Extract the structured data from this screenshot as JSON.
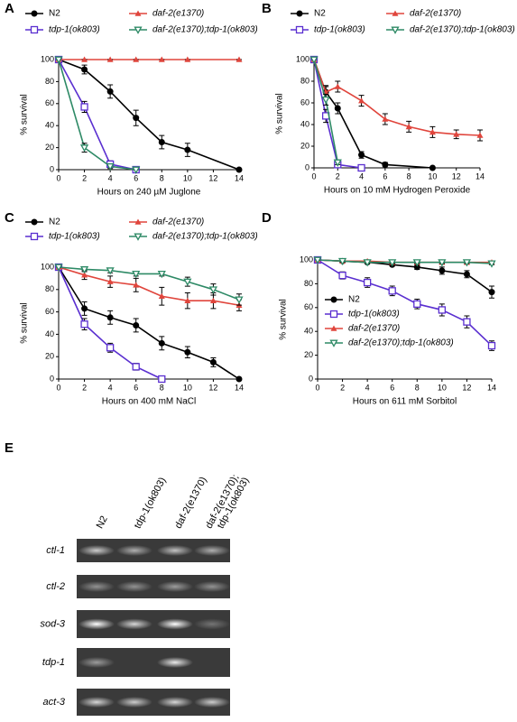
{
  "chart_data": [
    {
      "type": "line",
      "panel": "A",
      "xlabel": "Hours on 240 µM Juglone",
      "ylabel": "% survival",
      "xlim": [
        0,
        14
      ],
      "xticks": [
        0,
        2,
        4,
        6,
        8,
        10,
        12,
        14
      ],
      "ylim": [
        0,
        100
      ],
      "yticks": [
        0,
        20,
        40,
        60,
        80,
        100
      ],
      "series": [
        {
          "name": "N2",
          "color": "#000000",
          "marker": "circle",
          "x": [
            0,
            2,
            4,
            6,
            8,
            10,
            14
          ],
          "values": [
            100,
            91,
            71,
            47,
            25,
            18,
            0
          ],
          "errors": [
            0,
            4,
            6,
            7,
            6,
            6,
            0
          ]
        },
        {
          "name": "tdp-1(ok803)",
          "color": "#5a2fd0",
          "marker": "open-square",
          "x": [
            0,
            2,
            4,
            6
          ],
          "values": [
            100,
            57,
            5,
            0
          ],
          "errors": [
            0,
            5,
            3,
            0
          ]
        },
        {
          "name": "daf-2(e1370)",
          "color": "#e0453c",
          "marker": "triangle-up",
          "x": [
            0,
            2,
            4,
            6,
            8,
            10,
            14
          ],
          "values": [
            100,
            100,
            100,
            100,
            100,
            100,
            100
          ],
          "errors": [
            0,
            0,
            0,
            0,
            0,
            0,
            0
          ]
        },
        {
          "name": "daf-2(e1370);tdp-1(ok803)",
          "color": "#2e8a66",
          "marker": "open-triangle-down",
          "x": [
            0,
            2,
            4,
            6
          ],
          "values": [
            100,
            20,
            3,
            0
          ],
          "errors": [
            0,
            4,
            2,
            0
          ]
        }
      ]
    },
    {
      "type": "line",
      "panel": "B",
      "xlabel": "Hours on 10 mM Hydrogen Peroxide",
      "ylabel": "% survival",
      "xlim": [
        0,
        14
      ],
      "xticks": [
        0,
        2,
        4,
        6,
        8,
        10,
        12,
        14
      ],
      "ylim": [
        0,
        100
      ],
      "yticks": [
        0,
        20,
        40,
        60,
        80,
        100
      ],
      "series": [
        {
          "name": "N2",
          "color": "#000000",
          "marker": "circle",
          "x": [
            0,
            1,
            2,
            4,
            6,
            10
          ],
          "values": [
            100,
            70,
            55,
            12,
            3,
            0
          ],
          "errors": [
            0,
            5,
            5,
            3,
            2,
            0
          ]
        },
        {
          "name": "tdp-1(ok803)",
          "color": "#5a2fd0",
          "marker": "open-square",
          "x": [
            0,
            1,
            2,
            4
          ],
          "values": [
            100,
            48,
            3,
            0
          ],
          "errors": [
            0,
            6,
            2,
            0
          ]
        },
        {
          "name": "daf-2(e1370)",
          "color": "#e0453c",
          "marker": "triangle-up",
          "x": [
            0,
            1,
            2,
            4,
            6,
            8,
            10,
            12,
            14
          ],
          "values": [
            100,
            70,
            75,
            62,
            45,
            38,
            33,
            31,
            30
          ],
          "errors": [
            0,
            6,
            5,
            5,
            5,
            5,
            5,
            4,
            5
          ]
        },
        {
          "name": "daf-2(e1370);tdp-1(ok803)",
          "color": "#2e8a66",
          "marker": "open-triangle-down",
          "x": [
            0,
            1,
            2
          ],
          "values": [
            100,
            63,
            5
          ],
          "errors": [
            0,
            5,
            2
          ]
        }
      ]
    },
    {
      "type": "line",
      "panel": "C",
      "xlabel": "Hours on 400 mM NaCl",
      "ylabel": "% survival",
      "xlim": [
        0,
        14
      ],
      "xticks": [
        0,
        2,
        4,
        6,
        8,
        10,
        12,
        14
      ],
      "ylim": [
        0,
        100
      ],
      "yticks": [
        0,
        20,
        40,
        60,
        80,
        100
      ],
      "series": [
        {
          "name": "N2",
          "color": "#000000",
          "marker": "circle",
          "x": [
            0,
            2,
            4,
            6,
            8,
            10,
            12,
            14
          ],
          "values": [
            100,
            63,
            55,
            48,
            32,
            24,
            15,
            0
          ],
          "errors": [
            0,
            6,
            6,
            6,
            6,
            5,
            4,
            0
          ]
        },
        {
          "name": "tdp-1(ok803)",
          "color": "#5a2fd0",
          "marker": "open-square",
          "x": [
            0,
            2,
            4,
            6,
            8
          ],
          "values": [
            100,
            49,
            28,
            11,
            0
          ],
          "errors": [
            0,
            5,
            4,
            3,
            0
          ]
        },
        {
          "name": "daf-2(e1370)",
          "color": "#e0453c",
          "marker": "triangle-up",
          "x": [
            0,
            2,
            4,
            6,
            8,
            10,
            12,
            14
          ],
          "values": [
            100,
            93,
            87,
            84,
            74,
            70,
            70,
            66
          ],
          "errors": [
            0,
            4,
            5,
            6,
            8,
            7,
            7,
            5
          ]
        },
        {
          "name": "daf-2(e1370);tdp-1(ok803)",
          "color": "#2e8a66",
          "marker": "open-triangle-down",
          "x": [
            0,
            2,
            4,
            6,
            8,
            10,
            12,
            14
          ],
          "values": [
            100,
            98,
            97,
            94,
            94,
            87,
            80,
            71
          ],
          "errors": [
            0,
            2,
            2,
            2,
            2,
            4,
            5,
            5
          ]
        }
      ]
    },
    {
      "type": "line",
      "panel": "D",
      "xlabel": "Hours on 611 mM Sorbitol",
      "ylabel": "% survival",
      "xlim": [
        0,
        14
      ],
      "xticks": [
        0,
        2,
        4,
        6,
        8,
        10,
        12,
        14
      ],
      "ylim": [
        0,
        100
      ],
      "yticks": [
        0,
        20,
        40,
        60,
        80,
        100
      ],
      "series": [
        {
          "name": "N2",
          "color": "#000000",
          "marker": "circle",
          "x": [
            0,
            2,
            4,
            6,
            8,
            10,
            12,
            14
          ],
          "values": [
            100,
            99,
            98,
            96,
            94,
            91,
            88,
            73
          ],
          "errors": [
            0,
            1,
            1,
            1,
            2,
            3,
            3,
            5
          ]
        },
        {
          "name": "tdp-1(ok803)",
          "color": "#5a2fd0",
          "marker": "open-square",
          "x": [
            0,
            2,
            4,
            6,
            8,
            10,
            12,
            14
          ],
          "values": [
            100,
            87,
            81,
            74,
            63,
            58,
            48,
            28
          ],
          "errors": [
            0,
            3,
            4,
            4,
            4,
            5,
            5,
            4
          ]
        },
        {
          "name": "daf-2(e1370)",
          "color": "#e0453c",
          "marker": "triangle-up",
          "x": [
            0,
            2,
            4,
            6,
            8,
            10,
            12,
            14
          ],
          "values": [
            100,
            99,
            99,
            98,
            98,
            98,
            98,
            98
          ],
          "errors": [
            0,
            1,
            1,
            1,
            1,
            1,
            1,
            1
          ]
        },
        {
          "name": "daf-2(e1370);tdp-1(ok803)",
          "color": "#2e8a66",
          "marker": "open-triangle-down",
          "x": [
            0,
            2,
            4,
            6,
            8,
            10,
            12,
            14
          ],
          "values": [
            100,
            99,
            98,
            98,
            98,
            98,
            98,
            97
          ],
          "errors": [
            0,
            1,
            1,
            1,
            1,
            1,
            1,
            1
          ]
        }
      ]
    }
  ],
  "gel": {
    "panel": "E",
    "lanes": [
      [
        "N2"
      ],
      [
        "tdp-1(ok803)"
      ],
      [
        "daf-2(e1370)"
      ],
      [
        "daf-2(e1370);",
        "tdp-1(ok803)"
      ]
    ],
    "genes": [
      "ctl-1",
      "ctl-2",
      "sod-3",
      "tdp-1",
      "act-3"
    ]
  }
}
